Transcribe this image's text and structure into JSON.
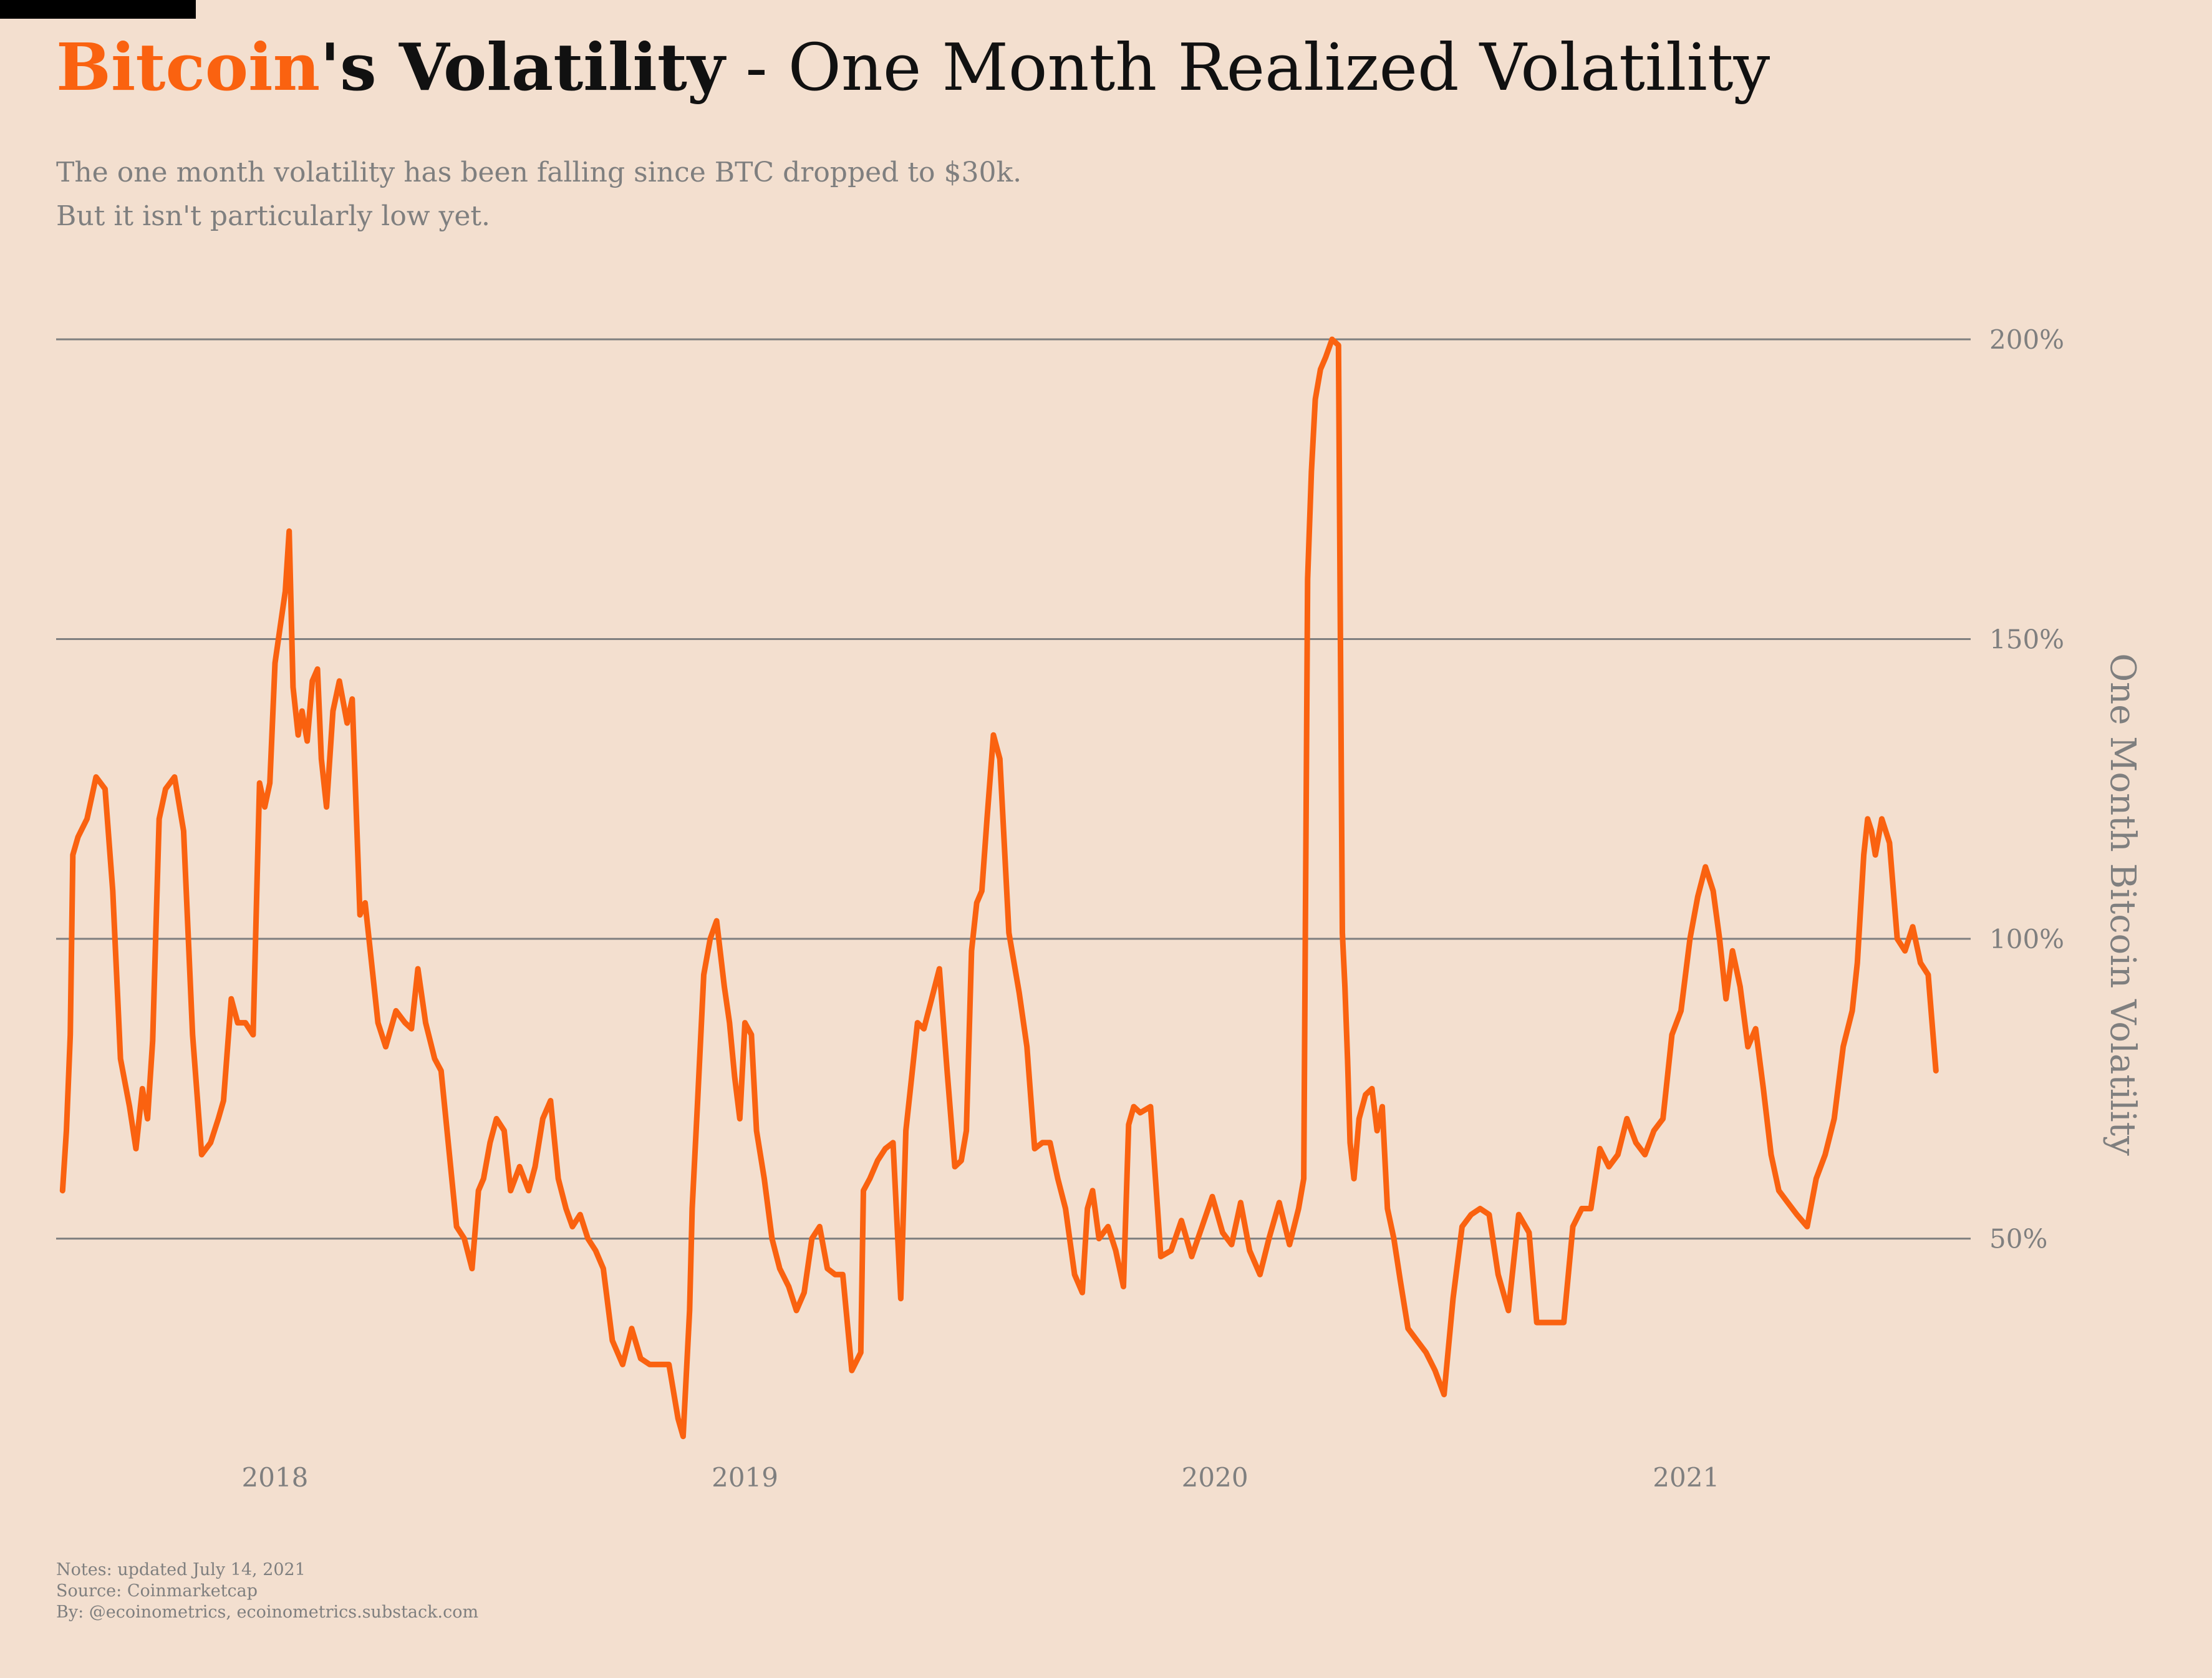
{
  "header": {
    "title_brand": "Bitcoin",
    "title_bold": "'s Volatility",
    "title_rest": " - One Month Realized Volatility",
    "subtitle_line1": "The one month volatility has been falling since BTC dropped to $30k.",
    "subtitle_line2": "But it isn't particularly low yet."
  },
  "footer": {
    "notes": "Notes: updated July 14, 2021",
    "source": "Source: Coinmarketcap",
    "by": "By: @ecoinometrics, ecoinometrics.substack.com"
  },
  "colors": {
    "background": "#f3dfcf",
    "line": "#fa6210",
    "grid": "#7f7f7f",
    "text": "#7f7f7f"
  },
  "chart_data": {
    "type": "line",
    "title": "Bitcoin's Volatility - One Month Realized Volatility",
    "ylabel": "One Month Bitcoin Volatility",
    "ylim": [
      10,
      200
    ],
    "yticks": [
      50,
      100,
      150,
      200
    ],
    "ytick_labels": [
      "50%",
      "100%",
      "150%",
      "200%"
    ],
    "xlim": [
      "2017-07-15",
      "2021-08-10"
    ],
    "xticks": [
      "2018-01-01",
      "2019-01-01",
      "2020-01-01",
      "2021-01-01"
    ],
    "xtick_labels": [
      "2018",
      "2019",
      "2020",
      "2021"
    ],
    "y_axis_side": "right",
    "grid": "horizontal",
    "series": [
      {
        "x": [
          "2017-07-20",
          "2017-07-23",
          "2017-07-26",
          "2017-07-28",
          "2017-08-01",
          "2017-08-08",
          "2017-08-15",
          "2017-08-22",
          "2017-08-28",
          "2017-09-03",
          "2017-09-10",
          "2017-09-15",
          "2017-09-20",
          "2017-09-24",
          "2017-09-28",
          "2017-10-03",
          "2017-10-08",
          "2017-10-15",
          "2017-10-22",
          "2017-10-29",
          "2017-11-05",
          "2017-11-12",
          "2017-11-18",
          "2017-11-22",
          "2017-11-28",
          "2017-12-03",
          "2017-12-09",
          "2017-12-15",
          "2017-12-20",
          "2017-12-24",
          "2017-12-28",
          "2018-01-01",
          "2018-01-05",
          "2018-01-09",
          "2018-01-12",
          "2018-01-15",
          "2018-01-19",
          "2018-01-22",
          "2018-01-26",
          "2018-01-30",
          "2018-02-03",
          "2018-02-06",
          "2018-02-10",
          "2018-02-15",
          "2018-02-20",
          "2018-02-26",
          "2018-03-02",
          "2018-03-08",
          "2018-03-12",
          "2018-03-17",
          "2018-03-22",
          "2018-03-28",
          "2018-04-05",
          "2018-04-12",
          "2018-04-17",
          "2018-04-22",
          "2018-04-28",
          "2018-05-05",
          "2018-05-10",
          "2018-05-16",
          "2018-05-22",
          "2018-05-28",
          "2018-06-03",
          "2018-06-08",
          "2018-06-12",
          "2018-06-17",
          "2018-06-22",
          "2018-06-28",
          "2018-07-03",
          "2018-07-10",
          "2018-07-17",
          "2018-07-22",
          "2018-07-28",
          "2018-08-03",
          "2018-08-09",
          "2018-08-15",
          "2018-08-20",
          "2018-08-26",
          "2018-09-01",
          "2018-09-07",
          "2018-09-13",
          "2018-09-20",
          "2018-09-28",
          "2018-10-05",
          "2018-10-12",
          "2018-10-19",
          "2018-10-26",
          "2018-11-03",
          "2018-11-10",
          "2018-11-14",
          "2018-11-19",
          "2018-11-21",
          "2018-11-25",
          "2018-11-30",
          "2018-12-05",
          "2018-12-10",
          "2018-12-16",
          "2018-12-20",
          "2018-12-24",
          "2018-12-28",
          "2019-01-01",
          "2019-01-06",
          "2019-01-10",
          "2019-01-16",
          "2019-01-22",
          "2019-01-28",
          "2019-02-04",
          "2019-02-10",
          "2019-02-16",
          "2019-02-22",
          "2019-02-28",
          "2019-03-06",
          "2019-03-12",
          "2019-03-18",
          "2019-03-25",
          "2019-04-01",
          "2019-04-03",
          "2019-04-08",
          "2019-04-14",
          "2019-04-20",
          "2019-04-26",
          "2019-05-02",
          "2019-05-06",
          "2019-05-10",
          "2019-05-15",
          "2019-05-20",
          "2019-05-26",
          "2019-06-01",
          "2019-06-07",
          "2019-06-13",
          "2019-06-18",
          "2019-06-22",
          "2019-06-26",
          "2019-06-30",
          "2019-07-04",
          "2019-07-08",
          "2019-07-13",
          "2019-07-18",
          "2019-07-25",
          "2019-08-02",
          "2019-08-08",
          "2019-08-14",
          "2019-08-20",
          "2019-08-26",
          "2019-09-01",
          "2019-09-07",
          "2019-09-14",
          "2019-09-20",
          "2019-09-24",
          "2019-09-28",
          "2019-10-03",
          "2019-10-10",
          "2019-10-16",
          "2019-10-22",
          "2019-10-26",
          "2019-10-30",
          "2019-11-04",
          "2019-11-12",
          "2019-11-20",
          "2019-11-28",
          "2019-12-06",
          "2019-12-14",
          "2019-12-22",
          "2019-12-30",
          "2020-01-07",
          "2020-01-14",
          "2020-01-21",
          "2020-01-28",
          "2020-02-05",
          "2020-02-12",
          "2020-02-20",
          "2020-02-28",
          "2020-03-06",
          "2020-03-10",
          "2020-03-13",
          "2020-03-16",
          "2020-03-19",
          "2020-03-23",
          "2020-03-27",
          "2020-04-01",
          "2020-04-06",
          "2020-04-09",
          "2020-04-11",
          "2020-04-13",
          "2020-04-15",
          "2020-04-18",
          "2020-04-22",
          "2020-04-27",
          "2020-05-02",
          "2020-05-06",
          "2020-05-10",
          "2020-05-14",
          "2020-05-19",
          "2020-05-24",
          "2020-05-30",
          "2020-06-06",
          "2020-06-13",
          "2020-06-20",
          "2020-06-27",
          "2020-07-04",
          "2020-07-11",
          "2020-07-18",
          "2020-07-25",
          "2020-08-01",
          "2020-08-08",
          "2020-08-16",
          "2020-08-24",
          "2020-09-01",
          "2020-09-07",
          "2020-09-14",
          "2020-09-21",
          "2020-09-28",
          "2020-10-05",
          "2020-10-12",
          "2020-10-19",
          "2020-10-26",
          "2020-11-02",
          "2020-11-09",
          "2020-11-16",
          "2020-11-23",
          "2020-11-30",
          "2020-12-07",
          "2020-12-14",
          "2020-12-21",
          "2020-12-28",
          "2021-01-04",
          "2021-01-10",
          "2021-01-16",
          "2021-01-22",
          "2021-01-27",
          "2021-02-01",
          "2021-02-06",
          "2021-02-12",
          "2021-02-18",
          "2021-02-24",
          "2021-03-02",
          "2021-03-08",
          "2021-03-14",
          "2021-03-21",
          "2021-03-28",
          "2021-04-05",
          "2021-04-12",
          "2021-04-19",
          "2021-04-26",
          "2021-05-03",
          "2021-05-10",
          "2021-05-14",
          "2021-05-19",
          "2021-05-22",
          "2021-05-25",
          "2021-05-28",
          "2021-06-02",
          "2021-06-08",
          "2021-06-14",
          "2021-06-20",
          "2021-06-26",
          "2021-07-02",
          "2021-07-08",
          "2021-07-11",
          "2021-07-14"
        ],
        "values": [
          58,
          68,
          84,
          114,
          117,
          120,
          127,
          125,
          108,
          80,
          72,
          65,
          75,
          70,
          83,
          120,
          125,
          127,
          118,
          84,
          64,
          66,
          70,
          73,
          90,
          86,
          86,
          84,
          126,
          122,
          126,
          146,
          152,
          158,
          168,
          142,
          134,
          138,
          133,
          143,
          145,
          130,
          122,
          138,
          143,
          136,
          140,
          104,
          106,
          96,
          86,
          82,
          88,
          86,
          85,
          95,
          86,
          80,
          78,
          65,
          52,
          50,
          45,
          58,
          60,
          66,
          70,
          68,
          58,
          62,
          58,
          62,
          70,
          73,
          60,
          55,
          52,
          54,
          50,
          48,
          45,
          33,
          29,
          35,
          30,
          29,
          29,
          29,
          20,
          17,
          38,
          55,
          72,
          94,
          100,
          103,
          92,
          86,
          77,
          70,
          86,
          84,
          68,
          60,
          50,
          45,
          42,
          38,
          41,
          50,
          52,
          45,
          44,
          44,
          28,
          31,
          58,
          60,
          63,
          65,
          66,
          40,
          68,
          76,
          86,
          85,
          90,
          95,
          78,
          62,
          63,
          68,
          98,
          106,
          108,
          120,
          134,
          130,
          101,
          91,
          82,
          65,
          66,
          66,
          60,
          55,
          44,
          41,
          55,
          58,
          50,
          52,
          48,
          42,
          69,
          72,
          71,
          72,
          47,
          48,
          53,
          47,
          52,
          57,
          51,
          49,
          56,
          48,
          44,
          50,
          56,
          49,
          55,
          60,
          160,
          178,
          190,
          195,
          197,
          200,
          199,
          101,
          92,
          80,
          66,
          60,
          70,
          74,
          75,
          68,
          72,
          55,
          50,
          43,
          35,
          33,
          31,
          28,
          24,
          40,
          52,
          54,
          55,
          54,
          44,
          38,
          54,
          51,
          36,
          36,
          36,
          36,
          52,
          55,
          55,
          65,
          62,
          64,
          70,
          66,
          64,
          68,
          70,
          84,
          88,
          100,
          107,
          112,
          108,
          100,
          90,
          98,
          92,
          82,
          85,
          75,
          64,
          58,
          56,
          54,
          52,
          60,
          64,
          70,
          82,
          88,
          96,
          114,
          120,
          118,
          114,
          120,
          116,
          100,
          98,
          102,
          96,
          94,
          86,
          78
        ]
      }
    ]
  }
}
